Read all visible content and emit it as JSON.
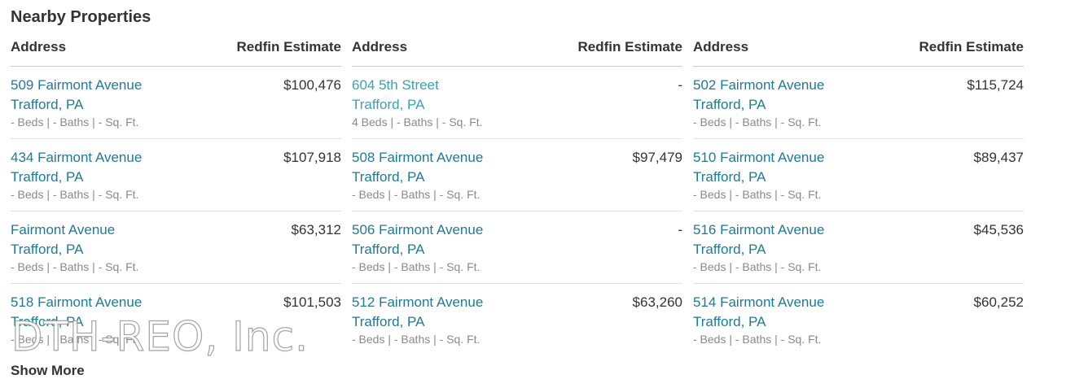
{
  "section_title": "Nearby Properties",
  "headers": {
    "address": "Address",
    "estimate": "Redfin Estimate"
  },
  "columns": [
    [
      {
        "street": "509 Fairmont Avenue",
        "city": "Trafford, PA",
        "price": "$100,476",
        "details": "- Beds | - Baths | - Sq. Ft."
      },
      {
        "street": "434 Fairmont Avenue",
        "city": "Trafford, PA",
        "price": "$107,918",
        "details": "- Beds | - Baths | - Sq. Ft."
      },
      {
        "street": "Fairmont Avenue",
        "city": "Trafford, PA",
        "price": "$63,312",
        "details": "- Beds | - Baths | - Sq. Ft."
      },
      {
        "street": "518 Fairmont Avenue",
        "city": "Trafford, PA",
        "price": "$101,503",
        "details": "- Beds | - Baths | - Sq. Ft."
      }
    ],
    [
      {
        "street": "604 5th Street",
        "city": "Trafford, PA",
        "price": "-",
        "details": "4 Beds | - Baths | - Sq. Ft."
      },
      {
        "street": "508 Fairmont Avenue",
        "city": "Trafford, PA",
        "price": "$97,479",
        "details": "- Beds | - Baths | - Sq. Ft."
      },
      {
        "street": "506 Fairmont Avenue",
        "city": "Trafford, PA",
        "price": "-",
        "details": "- Beds | - Baths | - Sq. Ft."
      },
      {
        "street": "512 Fairmont Avenue",
        "city": "Trafford, PA",
        "price": "$63,260",
        "details": "- Beds | - Baths | - Sq. Ft."
      }
    ],
    [
      {
        "street": "502 Fairmont Avenue",
        "city": "Trafford, PA",
        "price": "$115,724",
        "details": "- Beds | - Baths | - Sq. Ft."
      },
      {
        "street": "510 Fairmont Avenue",
        "city": "Trafford, PA",
        "price": "$89,437",
        "details": "- Beds | - Baths | - Sq. Ft."
      },
      {
        "street": "516 Fairmont Avenue",
        "city": "Trafford, PA",
        "price": "$45,536",
        "details": "- Beds | - Baths | - Sq. Ft."
      },
      {
        "street": "514 Fairmont Avenue",
        "city": "Trafford, PA",
        "price": "$60,252",
        "details": "- Beds | - Baths | - Sq. Ft."
      }
    ]
  ],
  "watermark": "DTH-REO, Inc.",
  "show_more": "Show More",
  "colors": {
    "link": "#1f7a96",
    "visited_link": "#36a3b8",
    "text": "#333333",
    "meta": "#8a8a8a"
  }
}
